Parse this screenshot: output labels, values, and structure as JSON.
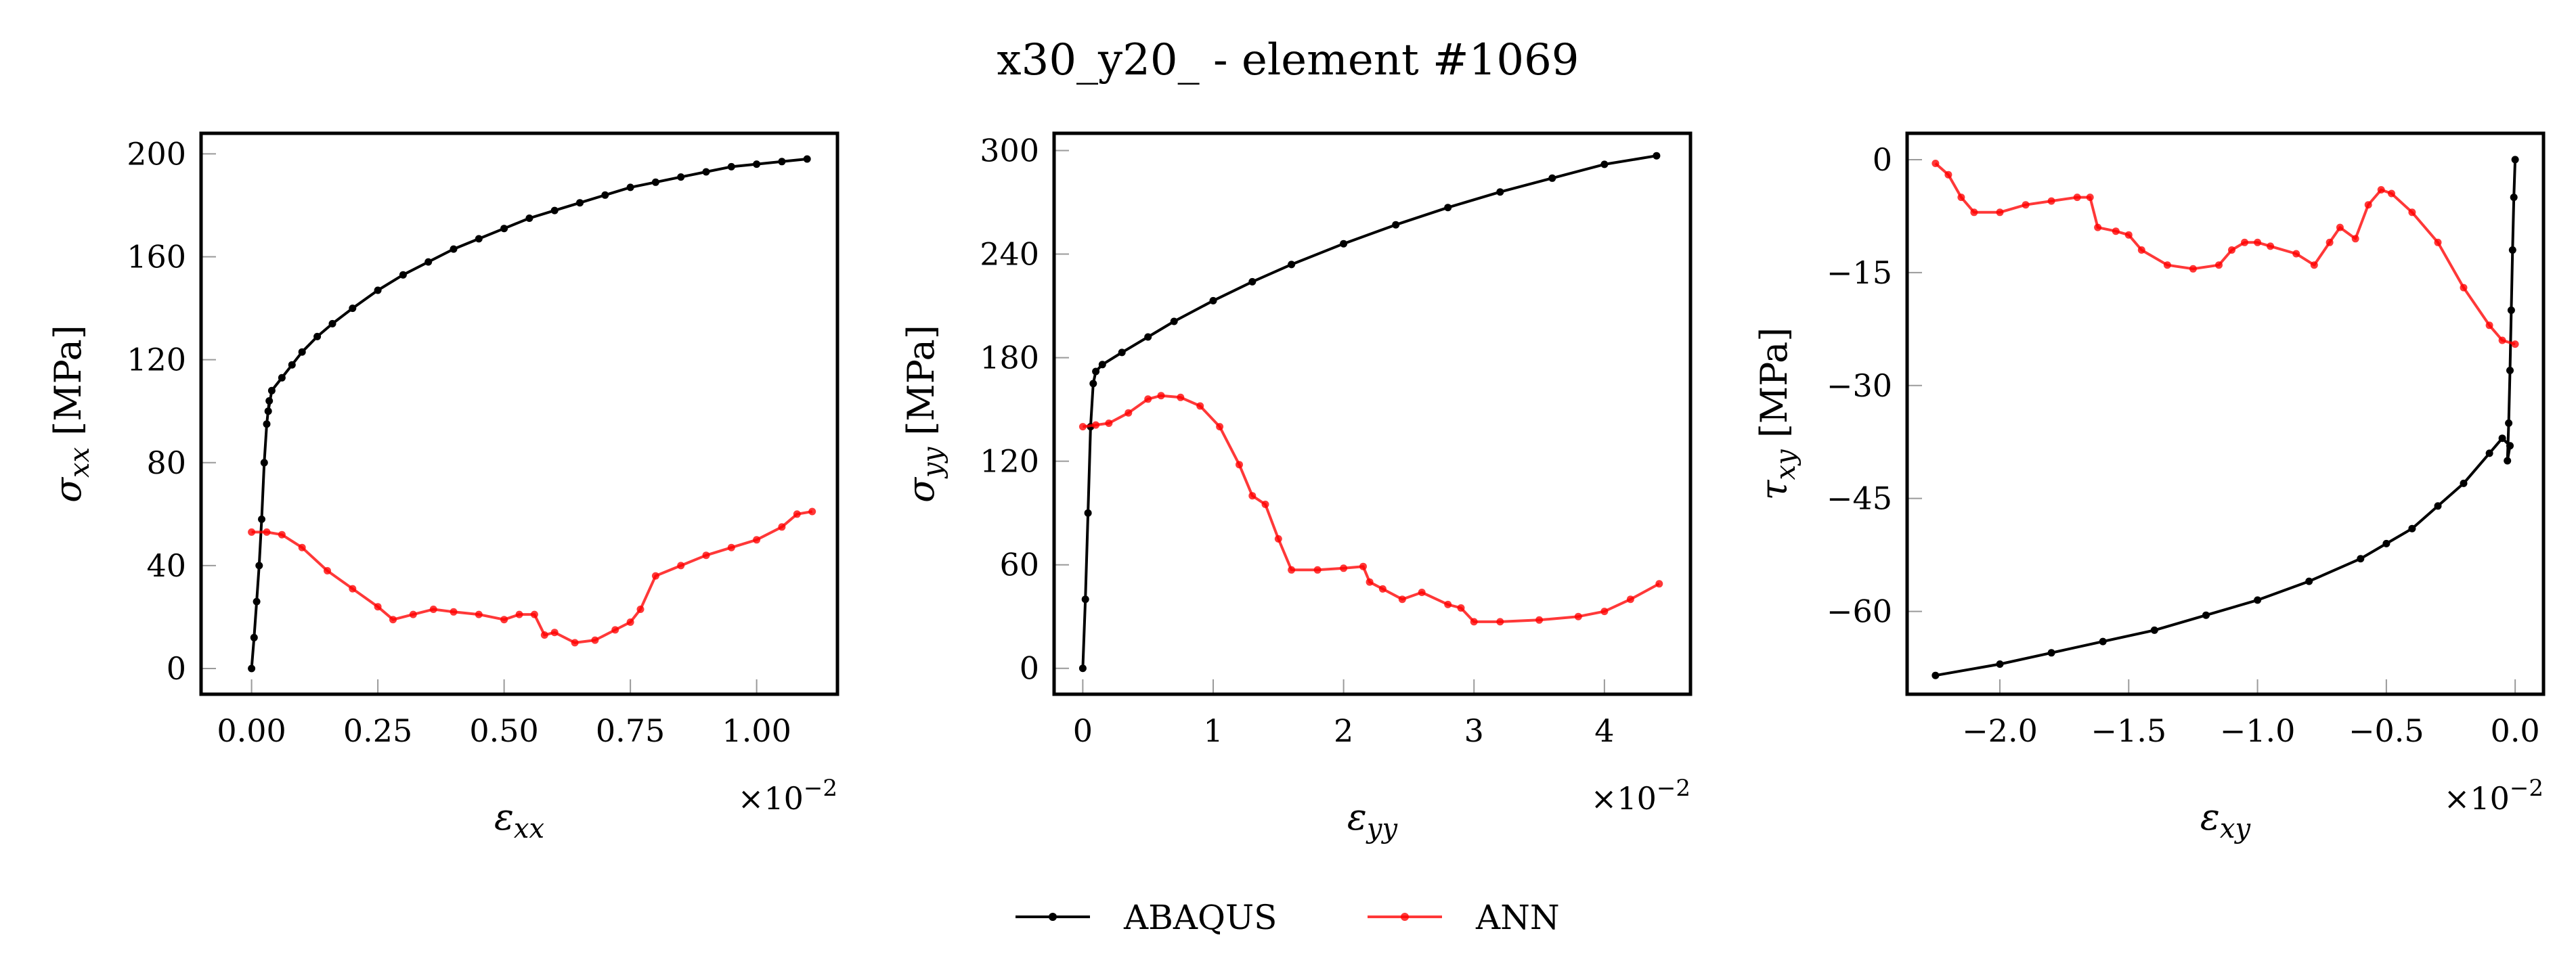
{
  "figure": {
    "title": "x30_y20_ - element #1069"
  },
  "legend": {
    "placement": "bottom-center",
    "entries": [
      {
        "name": "ABAQUS",
        "color": "#000000"
      },
      {
        "name": "ANN",
        "color": "#ff0000"
      }
    ]
  },
  "chart_data": [
    {
      "type": "line",
      "xlabel": "εxx",
      "xlabel_main": "ε",
      "xlabel_sub": "xx",
      "ylabel": "σxx [MPa]",
      "ylabel_main": "σ",
      "ylabel_sub": "xx",
      "ylabel_unit": "[MPa]",
      "x_multiplier": "×10",
      "x_multiplier_exp": "−2",
      "xlim": [
        -0.1,
        1.16
      ],
      "ylim": [
        -10,
        208
      ],
      "xticks": [
        0.0,
        0.25,
        0.5,
        0.75,
        1.0
      ],
      "xtick_labels": [
        "0.00",
        "0.25",
        "0.50",
        "0.75",
        "1.00"
      ],
      "yticks": [
        0,
        40,
        80,
        120,
        160,
        200
      ],
      "ytick_labels": [
        "0",
        "40",
        "80",
        "120",
        "160",
        "200"
      ],
      "grid": false,
      "series": [
        {
          "name": "ABAQUS",
          "color": "#000000",
          "x": [
            0.0,
            0.005,
            0.01,
            0.015,
            0.02,
            0.025,
            0.03,
            0.035,
            0.033,
            0.04,
            0.06,
            0.08,
            0.1,
            0.13,
            0.16,
            0.2,
            0.25,
            0.3,
            0.35,
            0.4,
            0.45,
            0.5,
            0.55,
            0.6,
            0.65,
            0.7,
            0.75,
            0.8,
            0.85,
            0.9,
            0.95,
            1.0,
            1.05,
            1.1
          ],
          "y": [
            0,
            12,
            26,
            40,
            58,
            80,
            95,
            104,
            100,
            108,
            113,
            118,
            123,
            129,
            134,
            140,
            147,
            153,
            158,
            163,
            167,
            171,
            175,
            178,
            181,
            184,
            187,
            189,
            191,
            193,
            195,
            196,
            197,
            198
          ]
        },
        {
          "name": "ANN",
          "color": "#ff0000",
          "x": [
            0.0,
            0.03,
            0.06,
            0.1,
            0.15,
            0.2,
            0.25,
            0.28,
            0.32,
            0.36,
            0.4,
            0.45,
            0.5,
            0.53,
            0.56,
            0.58,
            0.6,
            0.64,
            0.68,
            0.72,
            0.75,
            0.77,
            0.8,
            0.85,
            0.9,
            0.95,
            1.0,
            1.05,
            1.08,
            1.11
          ],
          "y": [
            53,
            53,
            52,
            47,
            38,
            31,
            24,
            19,
            21,
            23,
            22,
            21,
            19,
            21,
            21,
            13,
            14,
            10,
            11,
            15,
            18,
            23,
            36,
            40,
            44,
            47,
            50,
            55,
            60,
            61
          ]
        }
      ]
    },
    {
      "type": "line",
      "xlabel": "εyy",
      "xlabel_main": "ε",
      "xlabel_sub": "yy",
      "ylabel": "σyy [MPa]",
      "ylabel_main": "σ",
      "ylabel_sub": "yy",
      "ylabel_unit": "[MPa]",
      "x_multiplier": "×10",
      "x_multiplier_exp": "−2",
      "xlim": [
        -0.22,
        4.66
      ],
      "ylim": [
        -15,
        310
      ],
      "xticks": [
        0,
        1,
        2,
        3,
        4
      ],
      "xtick_labels": [
        "0",
        "1",
        "2",
        "3",
        "4"
      ],
      "yticks": [
        0,
        60,
        120,
        180,
        240,
        300
      ],
      "ytick_labels": [
        "0",
        "60",
        "120",
        "180",
        "240",
        "300"
      ],
      "grid": false,
      "series": [
        {
          "name": "ABAQUS",
          "color": "#000000",
          "x": [
            0.0,
            0.02,
            0.04,
            0.06,
            0.08,
            0.1,
            0.15,
            0.3,
            0.5,
            0.7,
            1.0,
            1.3,
            1.6,
            2.0,
            2.4,
            2.8,
            3.2,
            3.6,
            4.0,
            4.4
          ],
          "y": [
            0,
            40,
            90,
            140,
            165,
            172,
            176,
            183,
            192,
            201,
            213,
            224,
            234,
            246,
            257,
            267,
            276,
            284,
            292,
            297
          ]
        },
        {
          "name": "ANN",
          "color": "#ff0000",
          "x": [
            0.0,
            0.1,
            0.2,
            0.35,
            0.5,
            0.6,
            0.75,
            0.9,
            1.05,
            1.2,
            1.3,
            1.4,
            1.5,
            1.6,
            1.8,
            2.0,
            2.15,
            2.2,
            2.3,
            2.45,
            2.6,
            2.8,
            2.9,
            3.0,
            3.2,
            3.5,
            3.8,
            4.0,
            4.2,
            4.42
          ],
          "y": [
            140,
            141,
            142,
            148,
            156,
            158,
            157,
            152,
            140,
            118,
            100,
            95,
            75,
            57,
            57,
            58,
            59,
            50,
            46,
            40,
            44,
            37,
            35,
            27,
            27,
            28,
            30,
            33,
            40,
            49
          ]
        }
      ]
    },
    {
      "type": "line",
      "xlabel": "εxy",
      "xlabel_main": "ε",
      "xlabel_sub": "xy",
      "ylabel": "τxy [MPa]",
      "ylabel_main": "τ",
      "ylabel_sub": "xy",
      "ylabel_unit": "[MPa]",
      "x_multiplier": "×10",
      "x_multiplier_exp": "−2",
      "xlim": [
        -2.36,
        0.11
      ],
      "ylim": [
        -71,
        3.5
      ],
      "xticks": [
        -2.0,
        -1.5,
        -1.0,
        -0.5,
        0.0
      ],
      "xtick_labels": [
        "−2.0",
        "−1.5",
        "−1.0",
        "−0.5",
        "0.0"
      ],
      "yticks": [
        -60,
        -45,
        -30,
        -15,
        0
      ],
      "ytick_labels": [
        "−60",
        "−45",
        "−30",
        "−15",
        "0"
      ],
      "grid": false,
      "series": [
        {
          "name": "ABAQUS",
          "color": "#000000",
          "x": [
            0.0,
            -0.005,
            -0.01,
            -0.015,
            -0.02,
            -0.025,
            -0.03,
            -0.02,
            -0.05,
            -0.1,
            -0.2,
            -0.3,
            -0.4,
            -0.5,
            -0.6,
            -0.8,
            -1.0,
            -1.2,
            -1.4,
            -1.6,
            -1.8,
            -2.0,
            -2.25
          ],
          "y": [
            0,
            -5,
            -12,
            -20,
            -28,
            -35,
            -40,
            -38,
            -37,
            -39,
            -43,
            -46,
            -49,
            -51,
            -53,
            -56,
            -58.5,
            -60.5,
            -62.5,
            -64,
            -65.5,
            -67,
            -68.5
          ]
        },
        {
          "name": "ANN",
          "color": "#ff0000",
          "x": [
            -2.25,
            -2.2,
            -2.15,
            -2.1,
            -2.0,
            -1.9,
            -1.8,
            -1.7,
            -1.65,
            -1.62,
            -1.55,
            -1.5,
            -1.45,
            -1.35,
            -1.25,
            -1.15,
            -1.1,
            -1.05,
            -1.0,
            -0.95,
            -0.85,
            -0.78,
            -0.72,
            -0.68,
            -0.62,
            -0.57,
            -0.52,
            -0.48,
            -0.4,
            -0.3,
            -0.2,
            -0.1,
            -0.05,
            0.0
          ],
          "y": [
            -0.5,
            -2,
            -5,
            -7,
            -7,
            -6,
            -5.5,
            -5,
            -5,
            -9,
            -9.5,
            -10,
            -12,
            -14,
            -14.5,
            -14,
            -12,
            -11,
            -11,
            -11.5,
            -12.5,
            -14,
            -11,
            -9,
            -10.5,
            -6,
            -4,
            -4.5,
            -7,
            -11,
            -17,
            -22,
            -24,
            -24.5
          ]
        }
      ]
    }
  ]
}
